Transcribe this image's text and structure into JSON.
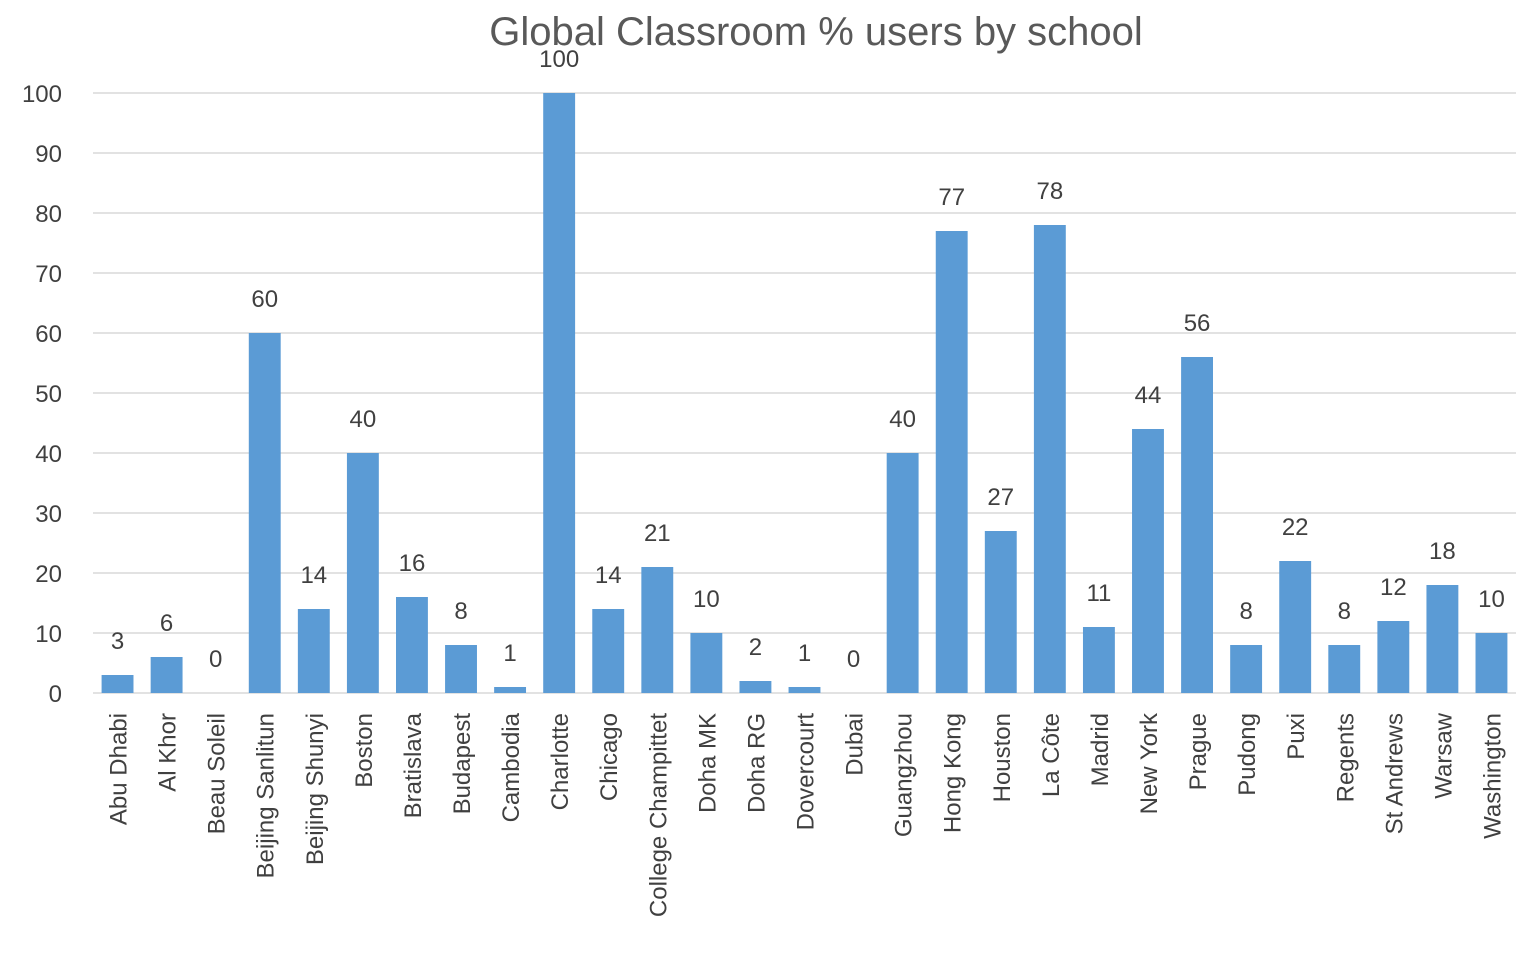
{
  "chart_data": {
    "type": "bar",
    "title": "Global Classroom % users by school",
    "xlabel": "",
    "ylabel": "",
    "ylim": [
      0,
      100
    ],
    "yticks": [
      "0",
      "10",
      "20",
      "30",
      "40",
      "50",
      "60",
      "70",
      "80",
      "90",
      "100"
    ],
    "grid": true,
    "legend": "none",
    "bar_color": "#5b9bd5",
    "categories": [
      "Abu Dhabi",
      "Al Khor",
      "Beau Soleil",
      "Beijing Sanlitun",
      "Beijing Shunyi",
      "Boston",
      "Bratislava",
      "Budapest",
      "Cambodia",
      "Charlotte",
      "Chicago",
      "College Champittet",
      "Doha MK",
      "Doha RG",
      "Dovercourt",
      "Dubai",
      "Guangzhou",
      "Hong Kong",
      "Houston",
      "La Côte",
      "Madrid",
      "New York",
      "Prague",
      "Pudong",
      "Puxi",
      "Regents",
      "St Andrews",
      "Warsaw",
      "Washington"
    ],
    "values": [
      3,
      6,
      0,
      60,
      14,
      40,
      16,
      8,
      1,
      100,
      14,
      21,
      10,
      2,
      1,
      0,
      40,
      77,
      27,
      78,
      11,
      44,
      56,
      8,
      22,
      8,
      12,
      18,
      10
    ],
    "data_labels": [
      "3",
      "6",
      "0",
      "60",
      "14",
      "40",
      "16",
      "8",
      "1",
      "100",
      "14",
      "21",
      "10",
      "2",
      "1",
      "0",
      "40",
      "77",
      "27",
      "78",
      "11",
      "44",
      "56",
      "8",
      "22",
      "8",
      "12",
      "18",
      "10"
    ]
  }
}
